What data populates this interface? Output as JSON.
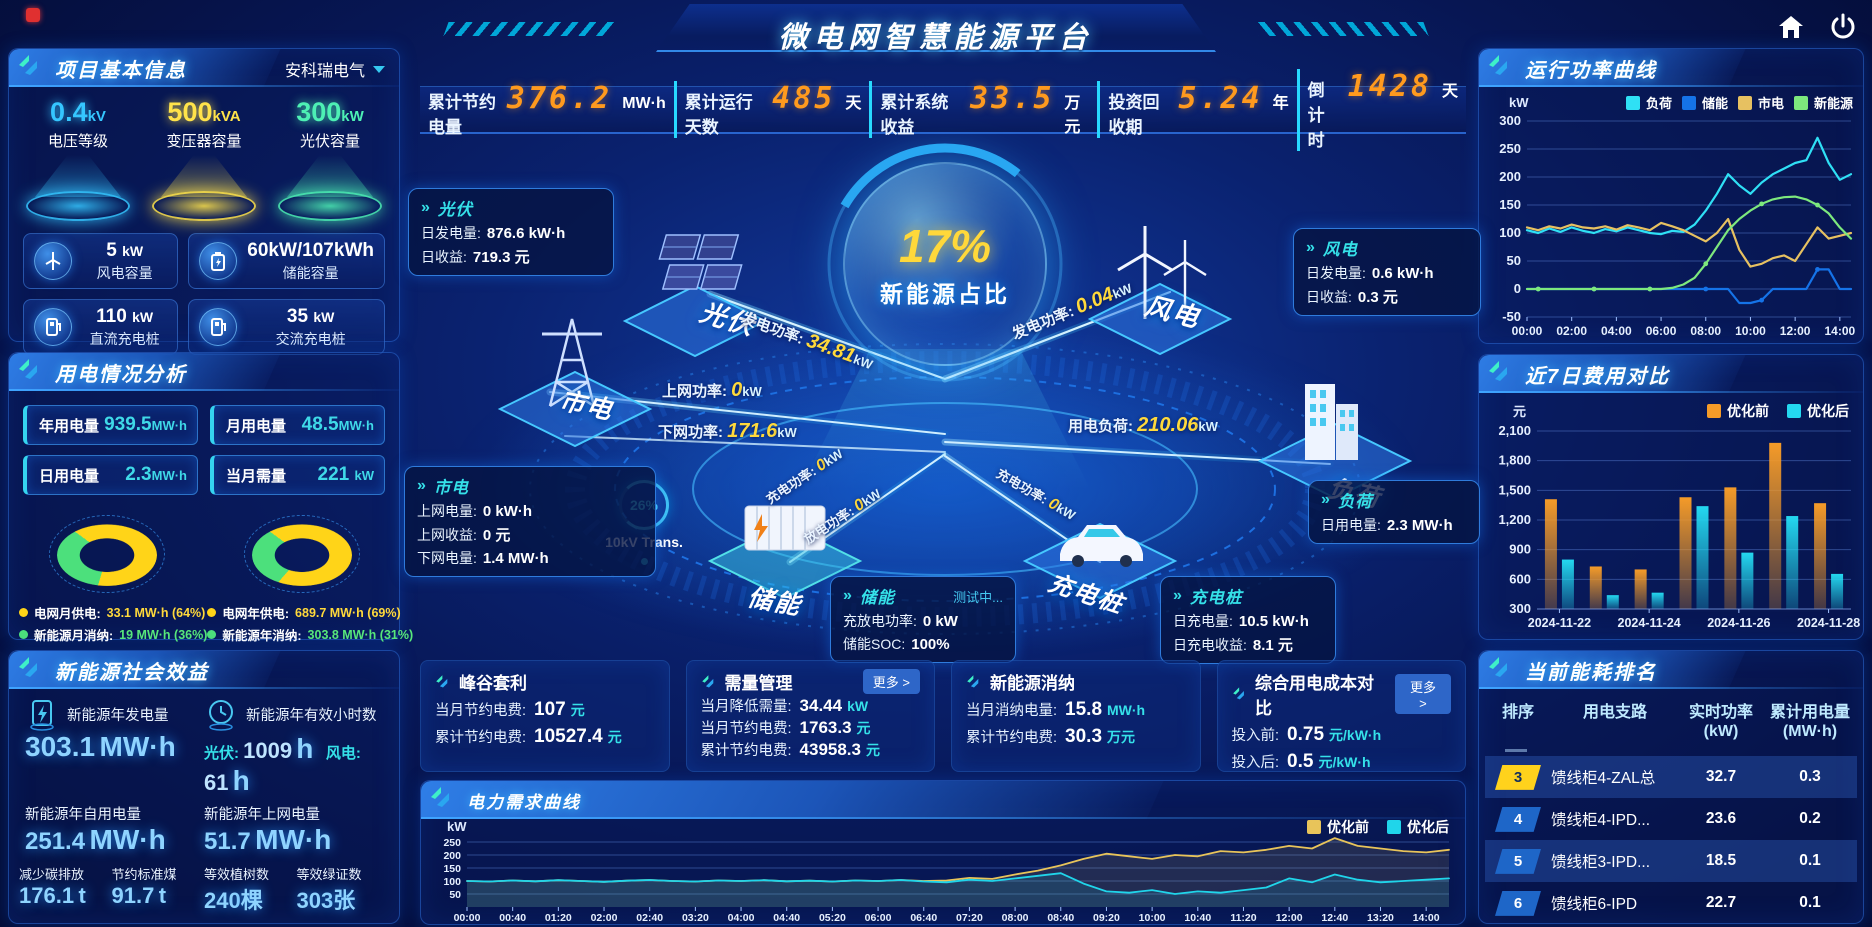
{
  "title": "微电网智慧能源平台",
  "topbar": {
    "stats": [
      {
        "label": "累计节约电量",
        "value": "376.2",
        "unit": "MW·h"
      },
      {
        "label": "累计运行天数",
        "value": "485",
        "unit": "天"
      },
      {
        "label": "累计系统收益",
        "value": "33.5",
        "unit": "万元"
      },
      {
        "label": "投资回收期",
        "value": "5.24",
        "unit": "年"
      },
      {
        "label": "倒计时",
        "value": "1428",
        "unit": "天"
      }
    ]
  },
  "project_panel": {
    "title": "项目基本信息",
    "company": "安科瑞电气",
    "spotlights": [
      {
        "value": "0.4",
        "unit": "kV",
        "label": "电压等级",
        "color": "#35c6ff"
      },
      {
        "value": "500",
        "unit": "kVA",
        "label": "变压器容量",
        "color": "#ffe34a"
      },
      {
        "value": "300",
        "unit": "kW",
        "label": "光伏容量",
        "color": "#4df0b4"
      }
    ],
    "cards": [
      {
        "icon": "wind-turbine-icon",
        "value": "5",
        "unit": "kW",
        "label": "风电容量"
      },
      {
        "icon": "battery-icon",
        "value": "60kW/107kWh",
        "unit": "",
        "label": "储能容量"
      },
      {
        "icon": "dc-charger-icon",
        "value": "110",
        "unit": "kW",
        "label": "直流充电桩"
      },
      {
        "icon": "ac-charger-icon",
        "value": "35",
        "unit": "kW",
        "label": "交流充电桩"
      }
    ]
  },
  "usage_panel": {
    "title": "用电情况分析",
    "stats": [
      {
        "label": "年用电量",
        "value": "939.5",
        "unit": "MW·h"
      },
      {
        "label": "月用电量",
        "value": "48.5",
        "unit": "MW·h"
      },
      {
        "label": "日用电量",
        "value": "2.3",
        "unit": "MW·h"
      },
      {
        "label": "当月需量",
        "value": "221",
        "unit": "kW"
      }
    ],
    "donuts": [
      {
        "grid_label": "电网月供电:",
        "grid_value": "33.1 MW·h (64%)",
        "green_label": "新能源月消纳:",
        "green_value": "19 MW·h (36%)",
        "grid_pct": 64
      },
      {
        "grid_label": "电网年供电:",
        "grid_value": "689.7 MW·h (69%)",
        "green_label": "新能源年消纳:",
        "green_value": "303.8 MW·h (31%)",
        "grid_pct": 69
      }
    ]
  },
  "benefits_panel": {
    "title": "新能源社会效益",
    "gen": {
      "label": "新能源年发电量",
      "value": "303.1",
      "unit": "MW·h"
    },
    "hours": {
      "label": "新能源年有效小时数",
      "pv_k": "光伏:",
      "pv_v": "1009",
      "pv_u": "h",
      "wind_k": "风电:",
      "wind_v": "61",
      "wind_u": "h"
    },
    "self_use": {
      "label": "新能源年自用电量",
      "value": "251.4",
      "unit": "MW·h"
    },
    "to_grid": {
      "label": "新能源年上网电量",
      "value": "51.7",
      "unit": "MW·h"
    },
    "footer": [
      {
        "label": "减少碳排放",
        "value": "176.1",
        "unit": "t"
      },
      {
        "label": "节约标准煤",
        "value": "91.7",
        "unit": "t"
      },
      {
        "label": "等效植树数",
        "value": "240",
        "unit": "棵"
      },
      {
        "label": "等效绿证数",
        "value": "303",
        "unit": "张"
      }
    ]
  },
  "diagram": {
    "center_pct": "17%",
    "center_label": "新能源占比",
    "nodes": {
      "pv": "光伏",
      "wind": "风电",
      "grid": "市电",
      "storage": "储能",
      "ev": "充电桩",
      "load": "负荷"
    },
    "boxes": {
      "pv": {
        "title": "光伏",
        "r1k": "日发电量:",
        "r1v": "876.6 kW·h",
        "r2k": "日收益:",
        "r2v": "719.3 元"
      },
      "wind": {
        "title": "风电",
        "r1k": "日发电量:",
        "r1v": "0.6 kW·h",
        "r2k": "日收益:",
        "r2v": "0.3 元"
      },
      "grid": {
        "title": "市电",
        "r1k": "上网电量:",
        "r1v": "0 kW·h",
        "r2k": "上网收益:",
        "r2v": "0 元",
        "r3k": "下网电量:",
        "r3v": "1.4 MW·h"
      },
      "storage": {
        "title": "储能",
        "status": "测试中...",
        "r1k": "充放电功率:",
        "r1v": "0 kW",
        "r2k": "储能SOC:",
        "r2v": "100%"
      },
      "ev": {
        "title": "充电桩",
        "r1k": "日充电量:",
        "r1v": "10.5 kW·h",
        "r2k": "日充电收益:",
        "r2v": "8.1 元"
      },
      "load": {
        "title": "负荷",
        "r1k": "日用电量:",
        "r1v": "2.3 MW·h"
      }
    },
    "flows": {
      "pv_power": {
        "k": "发电功率:",
        "v": "34.81",
        "u": "kW"
      },
      "up_power": {
        "k": "上网功率:",
        "v": "0",
        "u": "kW"
      },
      "down_power": {
        "k": "下网功率:",
        "v": "171.6",
        "u": "kW"
      },
      "wind_power": {
        "k": "发电功率:",
        "v": "0.04",
        "u": "kW"
      },
      "load_power": {
        "k": "用电负荷:",
        "v": "210.06",
        "u": "kW"
      },
      "charge_power": {
        "k": "充电功率:",
        "v": "0",
        "u": "kW"
      },
      "discharge_power": {
        "k": "放电功率:",
        "v": "0",
        "u": "kW"
      },
      "ev_charge_power": {
        "k": "充电功率:",
        "v": "0",
        "u": "kW"
      }
    },
    "transformer": {
      "pct": "26%",
      "label": "10kV Trans."
    }
  },
  "benefit_cards": [
    {
      "title": "峰谷套利",
      "rows": [
        {
          "k": "当月节约电费:",
          "v": "107",
          "u": "元"
        },
        {
          "k": "累计节约电费:",
          "v": "10527.4",
          "u": "元"
        }
      ]
    },
    {
      "title": "需量管理",
      "more": "更多 >",
      "rows": [
        {
          "k": "当月降低需量:",
          "v": "34.44",
          "u": "kW"
        },
        {
          "k": "当月节约电费:",
          "v": "1763.3",
          "u": "元"
        },
        {
          "k": "累计节约电费:",
          "v": "43958.3",
          "u": "元"
        }
      ]
    },
    {
      "title": "新能源消纳",
      "rows": [
        {
          "k": "当月消纳电量:",
          "v": "15.8",
          "u": "MW·h"
        },
        {
          "k": "累计节约电费:",
          "v": "30.3",
          "u": "万元"
        }
      ]
    },
    {
      "title": "综合用电成本对比",
      "more": "更多 >",
      "rows": [
        {
          "k": "投入前:",
          "v": "0.75",
          "u": "元/kW·h"
        },
        {
          "k": "投入后:",
          "v": "0.5",
          "u": "元/kW·h"
        }
      ]
    }
  ],
  "ranking_panel": {
    "title": "当前能耗排名",
    "headers": [
      {
        "t": "排序",
        "s": ""
      },
      {
        "t": "用电支路",
        "s": ""
      },
      {
        "t": "实时功率",
        "s": "(kW)"
      },
      {
        "t": "累计用电量",
        "s": "(MW·h)"
      }
    ],
    "rows": [
      {
        "rank": "3",
        "branch": "馈线柜4-ZAL总",
        "power": "32.7",
        "energy": "0.3"
      },
      {
        "rank": "4",
        "branch": "馈线柜4-IPD...",
        "power": "23.6",
        "energy": "0.2"
      },
      {
        "rank": "5",
        "branch": "馈线柜3-IPD...",
        "power": "18.5",
        "energy": "0.1"
      },
      {
        "rank": "6",
        "branch": "馈线柜6-IPD",
        "power": "22.7",
        "energy": "0.1"
      }
    ]
  },
  "chart_data": [
    {
      "id": "power-curve",
      "type": "line",
      "title": "运行功率曲线",
      "ylabel": "kW",
      "ylim": [
        -50,
        300
      ],
      "yticks": [
        -50,
        0,
        50,
        100,
        150,
        200,
        250,
        300
      ],
      "xticks": [
        "00:00",
        "02:00",
        "04:00",
        "06:00",
        "08:00",
        "10:00",
        "12:00",
        "14:00"
      ],
      "x_step_hours": 0.5,
      "legend_position": "top",
      "grid": true,
      "series": [
        {
          "name": "负荷",
          "color": "#2fe0f5",
          "values": [
            105,
            100,
            108,
            102,
            110,
            104,
            100,
            107,
            103,
            110,
            105,
            100,
            98,
            104,
            102,
            115,
            140,
            170,
            205,
            185,
            170,
            190,
            205,
            215,
            225,
            230,
            270,
            225,
            195,
            205
          ]
        },
        {
          "name": "储能",
          "color": "#1573e8",
          "values": [
            0,
            0,
            0,
            0,
            0,
            0,
            0,
            0,
            0,
            0,
            0,
            0,
            0,
            0,
            0,
            0,
            0,
            0,
            0,
            -25,
            -25,
            -20,
            0,
            0,
            0,
            0,
            35,
            35,
            0,
            0
          ]
        },
        {
          "name": "市电",
          "color": "#e7c161",
          "values": [
            110,
            105,
            112,
            108,
            115,
            110,
            108,
            112,
            106,
            114,
            110,
            105,
            118,
            112,
            105,
            95,
            85,
            100,
            125,
            70,
            40,
            45,
            55,
            60,
            50,
            80,
            110,
            90,
            95,
            100
          ]
        },
        {
          "name": "新能源",
          "color": "#7de87d",
          "values": [
            0,
            0,
            0,
            0,
            0,
            0,
            0,
            0,
            0,
            0,
            0,
            0,
            0,
            2,
            8,
            20,
            45,
            75,
            105,
            125,
            140,
            152,
            160,
            164,
            165,
            160,
            150,
            135,
            110,
            90
          ]
        }
      ]
    },
    {
      "id": "cost-compare",
      "type": "bar",
      "title": "近7日费用对比",
      "ylabel": "元",
      "ylim": [
        300,
        2100
      ],
      "ytick_labels": [
        "300",
        "600",
        "900",
        "1,200",
        "1,500",
        "1,800",
        "2,100"
      ],
      "categories": [
        "2024-11-22",
        "2024-11-23",
        "2024-11-24",
        "2024-11-25",
        "2024-11-26",
        "2024-11-27",
        "2024-11-28"
      ],
      "shown_categories": [
        "2024-11-22",
        "2024-11-24",
        "2024-11-26",
        "2024-11-28"
      ],
      "legend_position": "top",
      "grid": true,
      "series": [
        {
          "name": "优化前",
          "color": "#f59b28",
          "values": [
            1410,
            730,
            700,
            1430,
            1530,
            1980,
            1370
          ]
        },
        {
          "name": "优化后",
          "color": "#24d8f0",
          "values": [
            800,
            440,
            465,
            1340,
            870,
            1240,
            655
          ]
        }
      ]
    },
    {
      "id": "demand-curve",
      "type": "line",
      "title": "电力需求曲线",
      "ylabel": "kW",
      "ylim": [
        0,
        300
      ],
      "yticks": [
        50,
        100,
        150,
        200,
        250
      ],
      "xticks": [
        "00:00",
        "00:40",
        "01:20",
        "02:00",
        "02:40",
        "03:20",
        "04:00",
        "04:40",
        "05:20",
        "06:00",
        "06:40",
        "07:20",
        "08:00",
        "08:40",
        "09:20",
        "10:00",
        "10:40",
        "11:20",
        "12:00",
        "12:40",
        "13:20",
        "14:00"
      ],
      "x_step_minutes": 20,
      "legend_position": "top-right",
      "grid": true,
      "series": [
        {
          "name": "优化前",
          "color": "#e8c45a",
          "values": [
            100,
            98,
            102,
            99,
            103,
            100,
            97,
            101,
            104,
            100,
            98,
            102,
            100,
            103,
            99,
            101,
            98,
            102,
            100,
            104,
            100,
            102,
            112,
            108,
            125,
            140,
            160,
            185,
            205,
            195,
            185,
            200,
            195,
            215,
            210,
            220,
            235,
            225,
            265,
            235,
            225,
            215,
            210,
            220
          ]
        },
        {
          "name": "优化后",
          "color": "#20d5ea",
          "values": [
            100,
            98,
            102,
            99,
            103,
            100,
            97,
            101,
            104,
            100,
            98,
            102,
            100,
            103,
            99,
            101,
            98,
            102,
            100,
            104,
            98,
            95,
            105,
            100,
            110,
            120,
            130,
            90,
            60,
            55,
            65,
            50,
            60,
            55,
            65,
            75,
            110,
            95,
            125,
            105,
            95,
            100,
            105,
            110
          ]
        }
      ]
    },
    {
      "id": "usage-donuts",
      "type": "pie",
      "charts": [
        {
          "slices": [
            {
              "label": "电网月供电",
              "value": 64,
              "color": "#ffd418"
            },
            {
              "label": "新能源月消纳",
              "value": 36,
              "color": "#4ce07c"
            }
          ]
        },
        {
          "slices": [
            {
              "label": "电网年供电",
              "value": 69,
              "color": "#ffd418"
            },
            {
              "label": "新能源年消纳",
              "value": 31,
              "color": "#4ce07c"
            }
          ]
        }
      ]
    }
  ]
}
